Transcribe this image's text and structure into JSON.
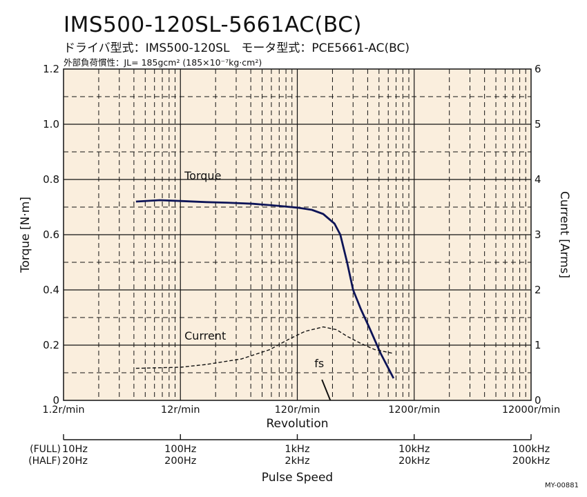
{
  "header": {
    "title": "IMS500-120SL-5661AC(BC)",
    "subtitle": "ドライバ型式：IMS500-120SL　モータ型式：PCE5661-AC(BC)",
    "inertia": "外部負荷慣性：JL= 185gcm² (185×10⁻⁷kg·cm²)"
  },
  "footer_code": "MY-00881",
  "colors": {
    "plot_bg": "#faeedd",
    "torque_line": "#0d1457",
    "current_line": "#111111",
    "grid": "#111111"
  },
  "chart_data": {
    "type": "line",
    "x_scale": "log",
    "xlabel": "Revolution",
    "x_ticks": [
      {
        "value": 1.2,
        "label": "1.2r/min"
      },
      {
        "value": 12,
        "label": "12r/min"
      },
      {
        "value": 120,
        "label": "120r/min"
      },
      {
        "value": 1200,
        "label": "1200r/min"
      },
      {
        "value": 12000,
        "label": "12000r/min"
      }
    ],
    "xlim": [
      1.2,
      12000
    ],
    "y_left": {
      "label": "Torque [N·m]",
      "lim": [
        0,
        1.2
      ],
      "ticks": [
        {
          "value": 0,
          "label": "0"
        },
        {
          "value": 0.2,
          "label": "0.2"
        },
        {
          "value": 0.4,
          "label": "0.4"
        },
        {
          "value": 0.6,
          "label": "0.6"
        },
        {
          "value": 0.8,
          "label": "0.8"
        },
        {
          "value": 1.0,
          "label": "1.0"
        },
        {
          "value": 1.2,
          "label": "1.2"
        }
      ]
    },
    "y_right": {
      "label": "Current [Arms]",
      "lim": [
        0,
        6
      ],
      "ticks": [
        {
          "value": 0,
          "label": "0"
        },
        {
          "value": 1,
          "label": "1"
        },
        {
          "value": 2,
          "label": "2"
        },
        {
          "value": 3,
          "label": "3"
        },
        {
          "value": 4,
          "label": "4"
        },
        {
          "value": 5,
          "label": "5"
        },
        {
          "value": 6,
          "label": "6"
        }
      ]
    },
    "grid": true,
    "series": [
      {
        "name": "Torque",
        "axis": "left",
        "style": "solid",
        "x": [
          5,
          8,
          12,
          20,
          30,
          50,
          80,
          120,
          160,
          200,
          250,
          280,
          320,
          360,
          420,
          500,
          620,
          800
        ],
        "y": [
          0.72,
          0.725,
          0.722,
          0.718,
          0.716,
          0.712,
          0.705,
          0.698,
          0.69,
          0.675,
          0.64,
          0.6,
          0.5,
          0.4,
          0.33,
          0.26,
          0.17,
          0.08
        ]
      },
      {
        "name": "Current",
        "axis": "right",
        "style": "dashed",
        "x": [
          5,
          12,
          20,
          40,
          70,
          100,
          140,
          200,
          260,
          320,
          420,
          550,
          800
        ],
        "y": [
          0.58,
          0.6,
          0.65,
          0.75,
          0.92,
          1.1,
          1.25,
          1.33,
          1.28,
          1.16,
          1.03,
          0.92,
          0.85
        ]
      }
    ],
    "annotations": [
      {
        "text": "Torque",
        "x": 13,
        "y": 0.8
      },
      {
        "text": "Current",
        "x": 13,
        "y": 0.22
      },
      {
        "text": "fs",
        "x": 168,
        "y": 0.12
      }
    ],
    "fs_marker": {
      "x": [
        195,
        230
      ],
      "y": [
        0.075,
        0.0
      ]
    },
    "pulse_speed": {
      "label": "Pulse Speed",
      "row_labels": [
        "(FULL)",
        "(HALF)"
      ],
      "ticks": [
        {
          "value": 1.2,
          "full": "10Hz",
          "half": "20Hz"
        },
        {
          "value": 12,
          "full": "100Hz",
          "half": "200Hz"
        },
        {
          "value": 120,
          "full": "1kHz",
          "half": "2kHz"
        },
        {
          "value": 1200,
          "full": "10kHz",
          "half": "20kHz"
        },
        {
          "value": 12000,
          "full": "100kHz",
          "half": "200kHz"
        }
      ]
    }
  }
}
